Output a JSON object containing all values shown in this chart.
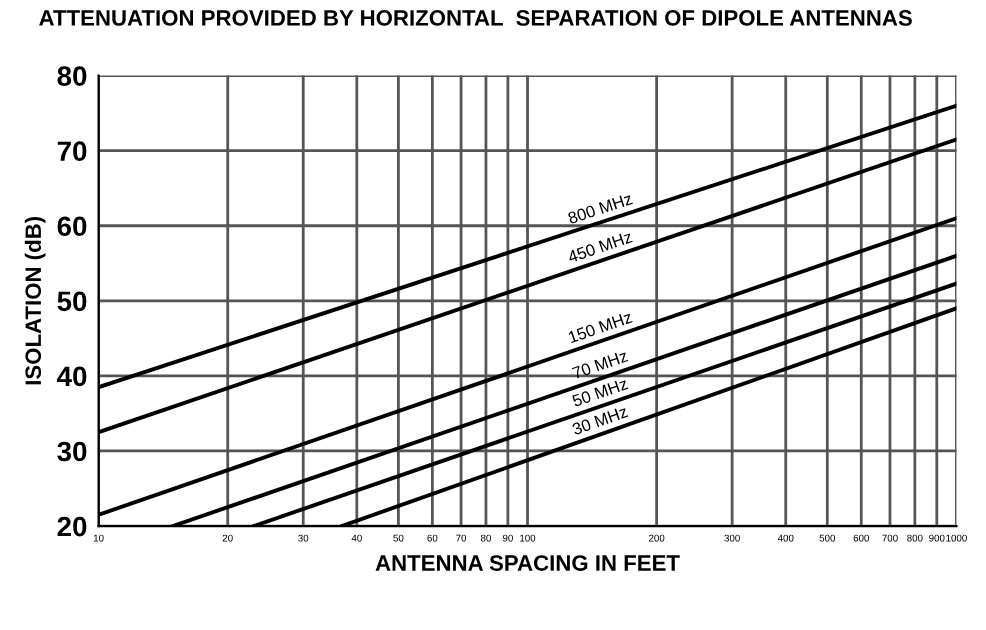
{
  "chart_data": {
    "type": "line",
    "title": "ATTENUATION PROVIDED BY HORIZONTAL  SEPARATION OF DIPOLE ANTENNAS",
    "xlabel": "ANTENNA SPACING IN FEET",
    "ylabel": "ISOLATION (dB)",
    "log": "x",
    "grid": true,
    "legend": false,
    "xlim": [
      10,
      1000
    ],
    "ylim": [
      20,
      80
    ],
    "yticks": [
      20,
      30,
      40,
      50,
      60,
      70,
      80
    ],
    "xticks": [
      10,
      20,
      30,
      40,
      50,
      60,
      70,
      80,
      90,
      100,
      200,
      300,
      400,
      500,
      600,
      700,
      800,
      900,
      1000
    ],
    "series": [
      {
        "name": "800 MHz",
        "color": "#000000",
        "x": [
          10,
          1000
        ],
        "values": [
          38.5,
          76
        ]
      },
      {
        "name": "450 MHz",
        "color": "#000000",
        "x": [
          10,
          1000
        ],
        "values": [
          32.5,
          71.5
        ]
      },
      {
        "name": "150 MHz",
        "color": "#000000",
        "x": [
          10,
          1000
        ],
        "values": [
          21.5,
          61
        ]
      },
      {
        "name": "70 MHz",
        "color": "#000000",
        "x": [
          14.9,
          1000
        ],
        "values": [
          20,
          56
        ]
      },
      {
        "name": "50 MHz",
        "color": "#000000",
        "x": [
          23,
          1000
        ],
        "values": [
          20,
          52.3
        ]
      },
      {
        "name": "30 MHz",
        "color": "#000000",
        "x": [
          36.9,
          1000
        ],
        "values": [
          20,
          49
        ]
      }
    ]
  }
}
